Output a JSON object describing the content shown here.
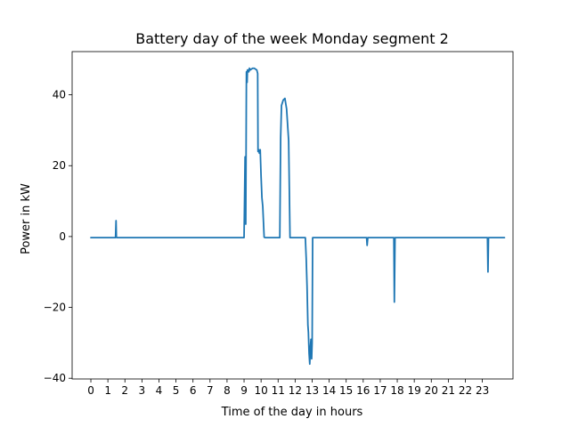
{
  "chart_data": {
    "type": "line",
    "title": "Battery day of the week Monday segment 2",
    "xlabel": "Time of the day in hours",
    "ylabel": "Power in kW",
    "xlim": [
      -1.1,
      24.8
    ],
    "ylim": [
      -40.2,
      52.2
    ],
    "x_ticks": [
      0,
      1,
      2,
      3,
      4,
      5,
      6,
      7,
      8,
      9,
      10,
      11,
      12,
      13,
      14,
      15,
      16,
      17,
      18,
      19,
      20,
      21,
      22,
      23
    ],
    "x_tick_labels": [
      "0",
      "1",
      "2",
      "3",
      "4",
      "5",
      "6",
      "7",
      "8",
      "9",
      "10",
      "11",
      "12",
      "13",
      "14",
      "15",
      "16",
      "17",
      "18",
      "19",
      "20",
      "21",
      "22",
      "23"
    ],
    "y_ticks": [
      -40,
      -20,
      0,
      20,
      40
    ],
    "y_tick_labels": [
      "−40",
      "−20",
      "0",
      "20",
      "40"
    ],
    "grid": false,
    "legend": "none",
    "series": [
      {
        "color": "#1f77b4",
        "x": [
          0,
          1.45,
          1.48,
          1.5,
          1.53,
          1.56,
          9.0,
          9.06,
          9.1,
          9.14,
          9.18,
          9.2,
          9.25,
          9.28,
          9.32,
          9.36,
          9.5,
          9.6,
          9.75,
          9.8,
          9.82,
          9.86,
          9.9,
          9.95,
          10.0,
          10.05,
          10.1,
          10.18,
          10.25,
          10.3,
          11.1,
          11.15,
          11.2,
          11.3,
          11.4,
          11.5,
          11.58,
          11.62,
          11.7,
          12.6,
          12.65,
          12.7,
          12.75,
          12.78,
          12.82,
          12.86,
          12.9,
          12.93,
          12.97,
          13.0,
          13.03,
          13.07,
          13.1,
          16.2,
          16.23,
          16.27,
          16.3,
          17.8,
          17.83,
          17.87,
          17.9,
          23.3,
          23.33,
          23.36,
          23.4,
          24.3
        ],
        "y": [
          -0.3,
          -0.3,
          4.5,
          -0.2,
          -0.3,
          -0.3,
          -0.3,
          22.5,
          3.5,
          46.5,
          43.5,
          47.0,
          47.0,
          46.5,
          47.5,
          47.0,
          47.5,
          47.5,
          47.0,
          46.0,
          24.0,
          24.5,
          23.5,
          24.5,
          17.0,
          11.0,
          8.5,
          -0.2,
          -0.3,
          -0.3,
          -0.3,
          28.0,
          37.0,
          38.5,
          39.0,
          36.0,
          30.0,
          27.0,
          -0.3,
          -0.3,
          -6.0,
          -14.0,
          -25.0,
          -27.0,
          -33.0,
          -36.0,
          -31.0,
          -29.0,
          -34.5,
          -30.0,
          -0.3,
          -0.3,
          -0.3,
          -0.3,
          -2.5,
          -0.3,
          -0.3,
          -0.3,
          -18.5,
          -0.3,
          -0.3,
          -0.3,
          -10.0,
          -0.3,
          -0.3,
          -0.3
        ]
      }
    ]
  }
}
